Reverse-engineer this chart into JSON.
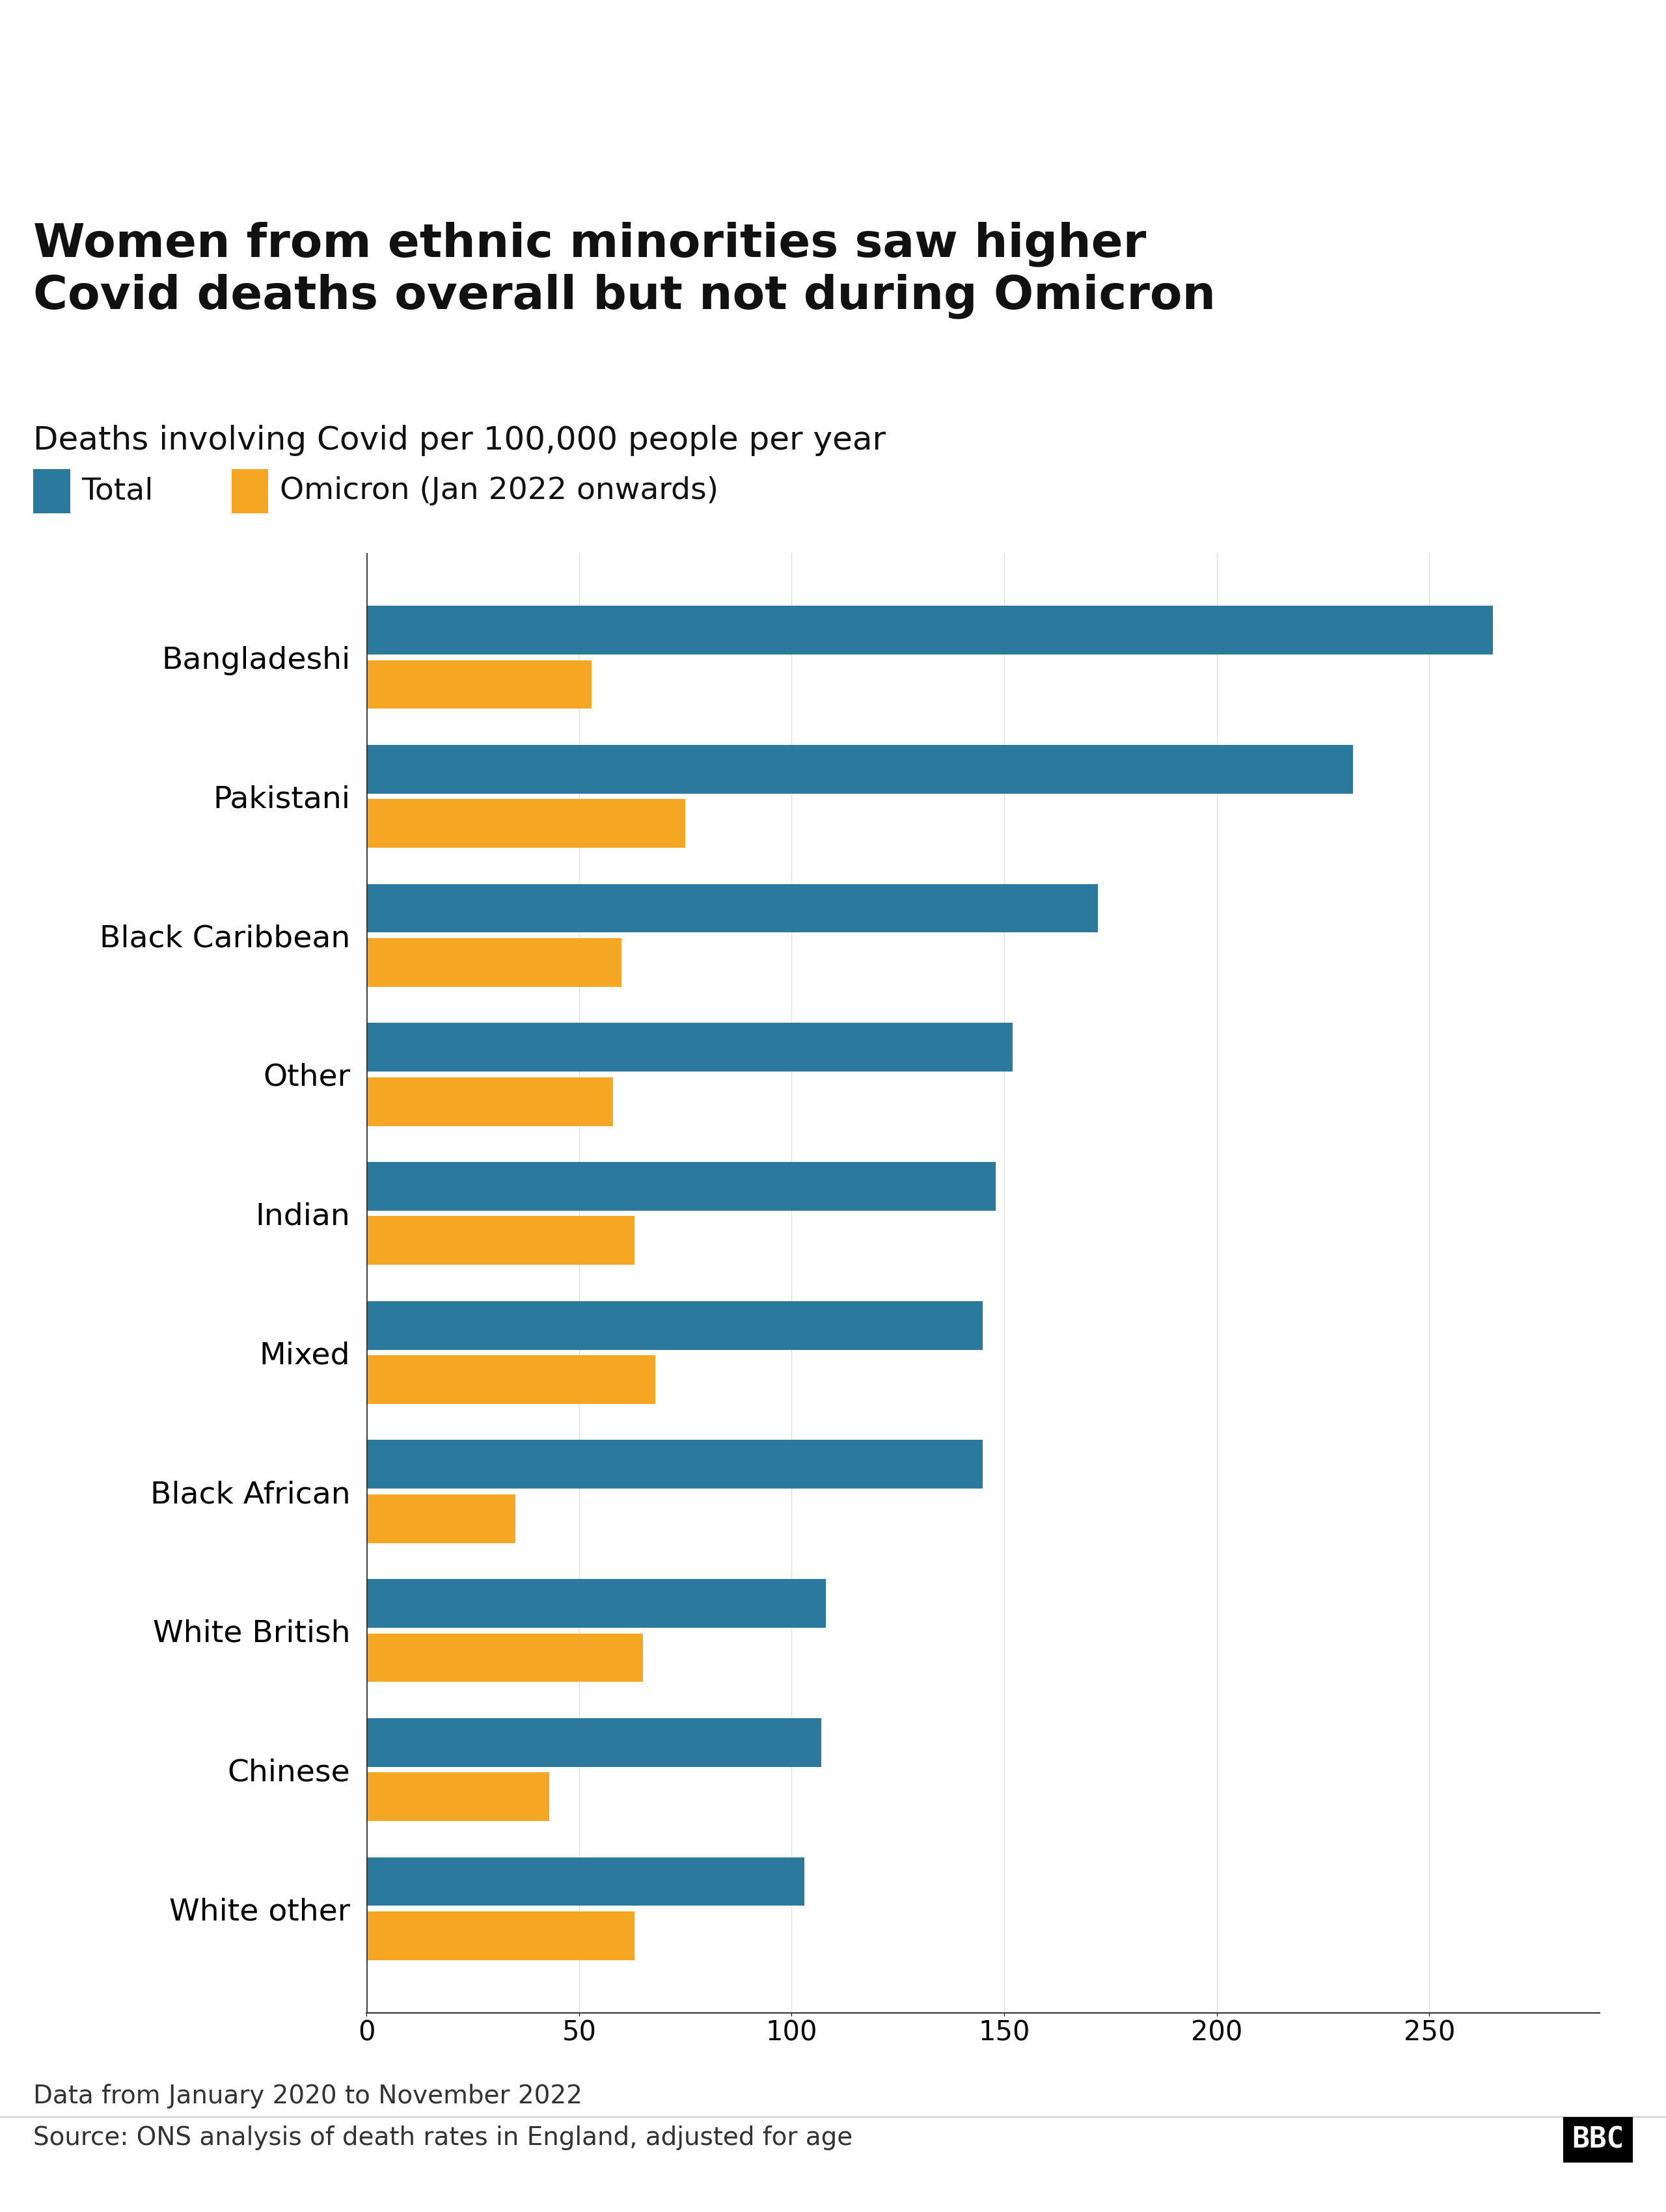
{
  "title": "Women from ethnic minorities saw higher\nCovid deaths overall but not during Omicron",
  "subtitle": "Deaths involving Covid per 100,000 people per year",
  "legend_total": "Total",
  "legend_omicron": "Omicron (Jan 2022 onwards)",
  "categories": [
    "Bangladeshi",
    "Pakistani",
    "Black Caribbean",
    "Other",
    "Indian",
    "Mixed",
    "Black African",
    "White British",
    "Chinese",
    "White other"
  ],
  "total_values": [
    265,
    232,
    172,
    152,
    148,
    145,
    145,
    108,
    107,
    103
  ],
  "omicron_values": [
    53,
    75,
    60,
    58,
    63,
    68,
    35,
    65,
    43,
    63
  ],
  "color_total": "#2b7a9e",
  "color_omicron": "#f5a623",
  "xlim": [
    0,
    290
  ],
  "xticks": [
    0,
    50,
    100,
    150,
    200,
    250
  ],
  "footnote1": "Data from January 2020 to November 2022",
  "footnote2": "Source: ONS analysis of death rates in England, adjusted for age",
  "bbc_logo": "BBC",
  "background_color": "#ffffff",
  "title_fontsize": 52,
  "subtitle_fontsize": 36,
  "legend_fontsize": 34,
  "category_fontsize": 34,
  "tick_fontsize": 30,
  "footnote_fontsize": 28
}
